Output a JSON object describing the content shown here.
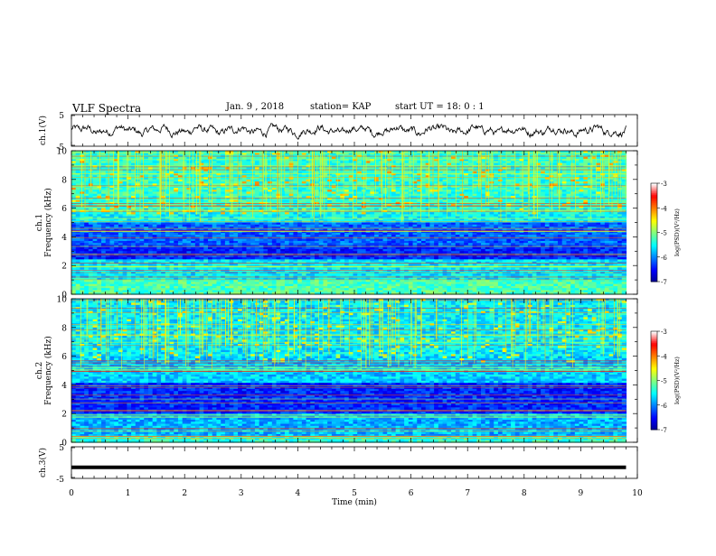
{
  "header": {
    "title": "VLF Spectra",
    "date": "Jan. 9 , 2018",
    "station": "station= KAP",
    "start": "start UT =  18: 0  : 1"
  },
  "chart_data": [
    {
      "type": "line",
      "panel": "waveform-ch1",
      "ylabel": "ch.1(V)",
      "xlim": [
        0,
        10
      ],
      "ylim": [
        -5,
        5
      ],
      "yticks": [
        "5",
        "-5"
      ],
      "series": [
        {
          "values_note": "noisy waveform, amplitude within ±2 V",
          "color": "#000000"
        }
      ]
    },
    {
      "type": "heatmap",
      "panel": "spectrogram-ch1",
      "ylabel": "ch.1\nFrequency (kHz)",
      "xlim": [
        0,
        9.8
      ],
      "ylim": [
        0,
        10
      ],
      "yticks": [
        "0",
        "2",
        "4",
        "6",
        "8",
        "10"
      ],
      "colorbar": {
        "label": "log(PSD)(V²/Hz)",
        "range": [
          -7,
          -3
        ],
        "ticks": [
          "-3",
          "-4",
          "-5",
          "-6",
          "-7"
        ]
      }
    },
    {
      "type": "heatmap",
      "panel": "spectrogram-ch2",
      "ylabel": "ch.2\nFrequency (kHz)",
      "xlim": [
        0,
        9.8
      ],
      "ylim": [
        0,
        10
      ],
      "yticks": [
        "0",
        "2",
        "4",
        "6",
        "8",
        "10"
      ],
      "colorbar": {
        "label": "log(PSD)(V²/Hz)",
        "range": [
          -7,
          -3
        ],
        "ticks": [
          "-3",
          "-4",
          "-5",
          "-6",
          "-7"
        ]
      }
    },
    {
      "type": "line",
      "panel": "waveform-ch3",
      "ylabel": "ch.3(V)",
      "xlim": [
        0,
        10
      ],
      "ylim": [
        -5,
        5
      ],
      "yticks": [
        "5",
        "-5"
      ],
      "series": [
        {
          "values_note": "flat line",
          "y": -1.5,
          "color": "#000000"
        }
      ]
    }
  ],
  "xaxis": {
    "label": "Time (min)",
    "ticks": [
      "0",
      "1",
      "2",
      "3",
      "4",
      "5",
      "6",
      "7",
      "8",
      "9",
      "10"
    ]
  },
  "colors": {
    "colormap": [
      "#00008f",
      "#0000ff",
      "#0080ff",
      "#00ffff",
      "#80ff80",
      "#ffff00",
      "#ff8000",
      "#ff0000",
      "#ffffff"
    ]
  }
}
